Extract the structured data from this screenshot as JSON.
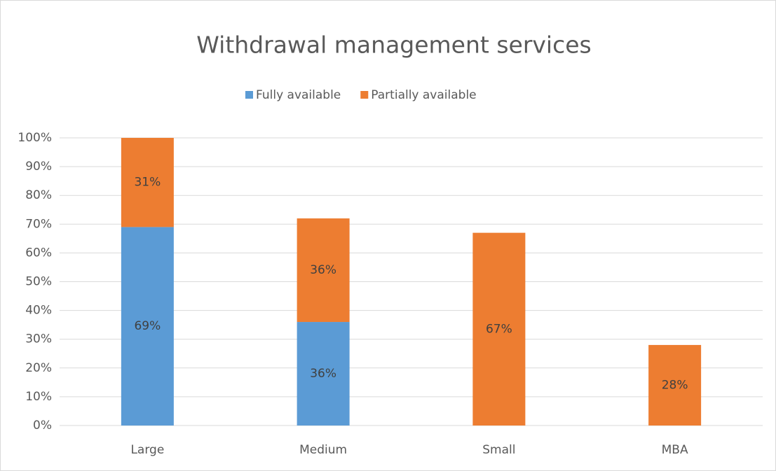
{
  "chart_data": {
    "type": "stacked_bar",
    "title": "Withdrawal management services",
    "categories": [
      "Large",
      "Medium",
      "Small",
      "MBA"
    ],
    "series": [
      {
        "name": "Fully available",
        "color": "#5b9bd5",
        "values": [
          69,
          36,
          null,
          null
        ],
        "value_labels": [
          "69%",
          "36%",
          null,
          null
        ]
      },
      {
        "name": "Partially available",
        "color": "#ed7d31",
        "values": [
          31,
          36,
          67,
          28
        ],
        "value_labels": [
          "31%",
          "36%",
          "67%",
          "28%"
        ]
      }
    ],
    "ylim": [
      0,
      100
    ],
    "yticks": [
      {
        "value": 0,
        "label": "0%"
      },
      {
        "value": 10,
        "label": "10%"
      },
      {
        "value": 20,
        "label": "20%"
      },
      {
        "value": 30,
        "label": "30%"
      },
      {
        "value": 40,
        "label": "40%"
      },
      {
        "value": 50,
        "label": "50%"
      },
      {
        "value": 60,
        "label": "60%"
      },
      {
        "value": 70,
        "label": "70%"
      },
      {
        "value": 80,
        "label": "80%"
      },
      {
        "value": 90,
        "label": "90%"
      },
      {
        "value": 100,
        "label": "100%"
      }
    ],
    "grid": true,
    "legend": "top"
  }
}
